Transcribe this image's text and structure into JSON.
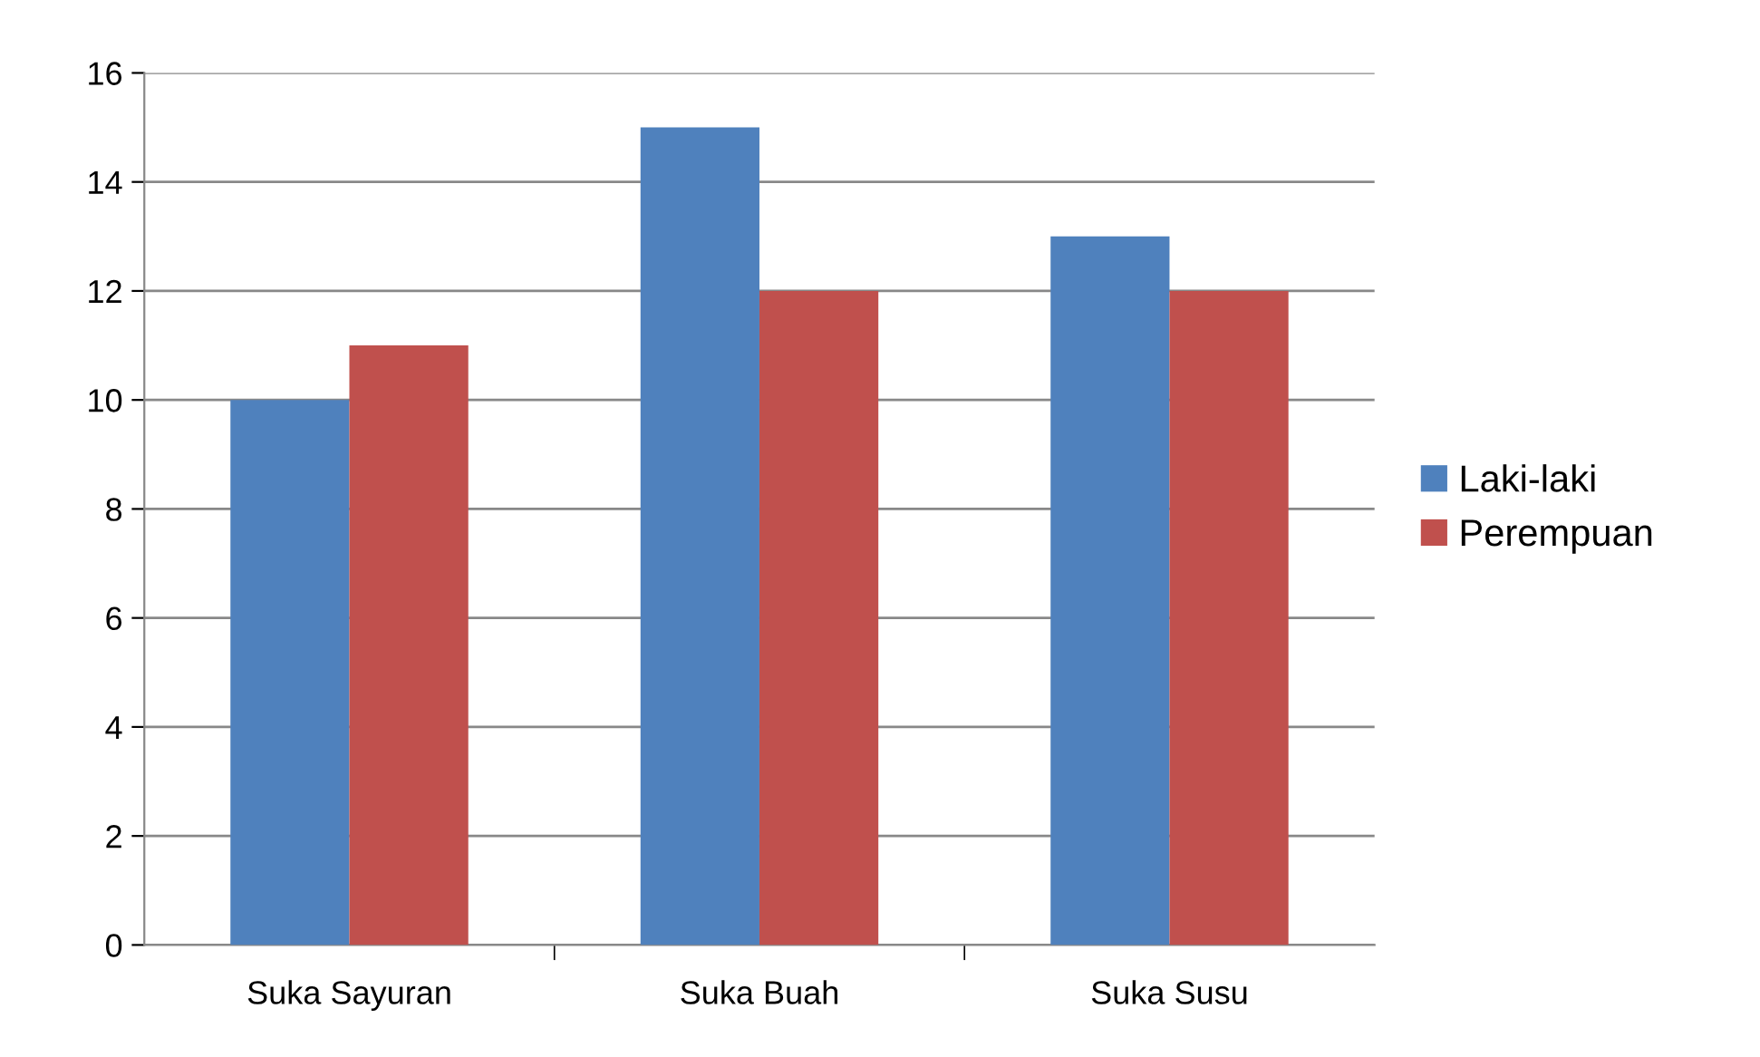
{
  "chart_data": {
    "type": "bar",
    "categories": [
      "Suka Sayuran",
      "Suka Buah",
      "Suka Susu"
    ],
    "series": [
      {
        "name": "Laki-laki",
        "color": "#4f81bd",
        "values": [
          10,
          15,
          13
        ]
      },
      {
        "name": "Perempuan",
        "color": "#c0504d",
        "values": [
          11,
          12,
          12
        ]
      }
    ],
    "ylim": [
      0,
      16
    ],
    "yticks": [
      0,
      2,
      4,
      6,
      8,
      10,
      12,
      14,
      16
    ],
    "grid": "y",
    "legend": "right"
  }
}
